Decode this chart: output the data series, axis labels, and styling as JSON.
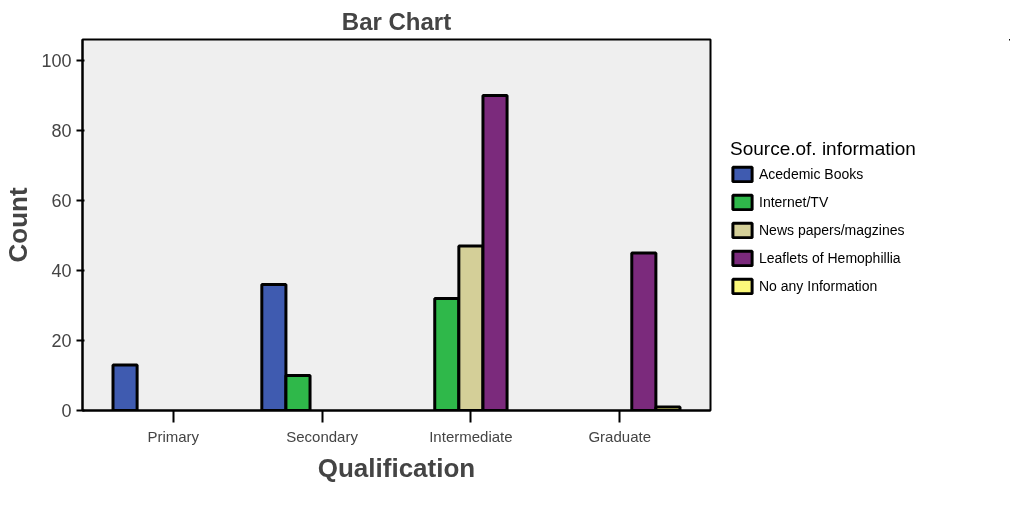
{
  "chart_data": {
    "type": "bar",
    "title": "Bar Chart",
    "xlabel": "Qualification",
    "ylabel": "Count",
    "legend_title": "Source.of. information",
    "categories": [
      "Primary",
      "Secondary",
      "Intermediate",
      "Graduate"
    ],
    "series": [
      {
        "name": "Acedemic Books",
        "color": "#3f5bb0",
        "values": [
          13,
          36,
          null,
          null
        ]
      },
      {
        "name": "Internet/TV",
        "color": "#2fb84a",
        "values": [
          null,
          10,
          32,
          null
        ]
      },
      {
        "name": "News papers/magzines",
        "color": "#d4cf98",
        "values": [
          null,
          null,
          47,
          null
        ]
      },
      {
        "name": "Leaflets of Hemophillia",
        "color": "#7b2a7c",
        "values": [
          null,
          null,
          90,
          45
        ]
      },
      {
        "name": "No any Information",
        "color": "#fbf87a",
        "values": [
          null,
          null,
          null,
          1
        ]
      }
    ],
    "ylim": [
      0,
      106
    ],
    "yticks": [
      0,
      20,
      40,
      60,
      80,
      100
    ],
    "grid": false,
    "legend": "right"
  }
}
